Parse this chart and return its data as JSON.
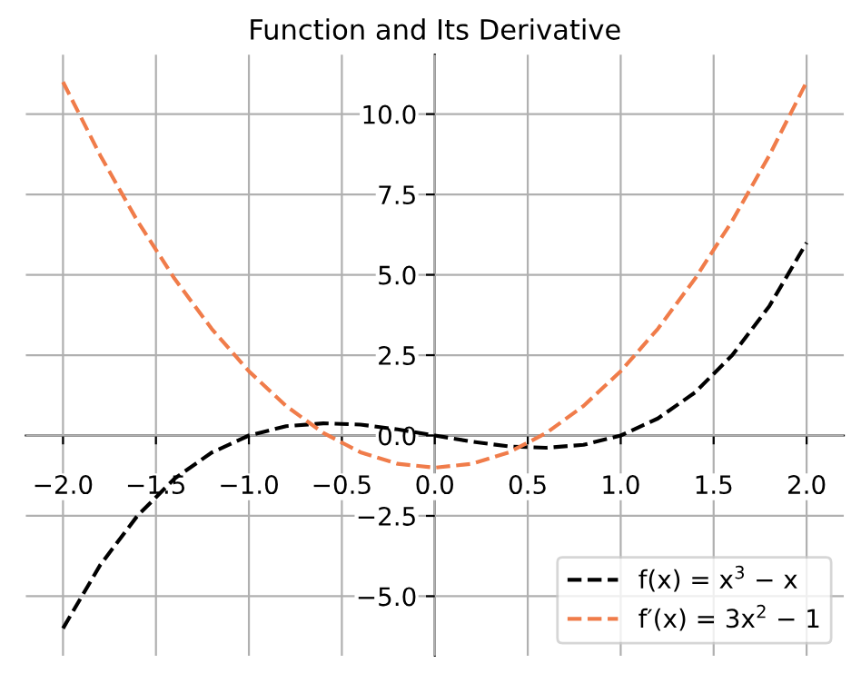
{
  "chart_data": {
    "type": "line",
    "title": "Function and Its Derivative",
    "x": [
      -2,
      -1.8,
      -1.6,
      -1.4,
      -1.2,
      -1,
      -0.8,
      -0.6,
      -0.4,
      -0.2,
      0,
      0.2,
      0.4,
      0.6,
      0.8,
      1,
      1.2,
      1.4,
      1.6,
      1.8,
      2
    ],
    "series": [
      {
        "name": "f(x) = x$^{3}$ − x",
        "color": "#000000",
        "values": [
          -6,
          -4.03,
          -2.5,
          -1.34,
          -0.53,
          0,
          0.29,
          0.38,
          0.34,
          0.19,
          0,
          -0.19,
          -0.34,
          -0.38,
          -0.29,
          0,
          0.53,
          1.34,
          2.5,
          4.03,
          6
        ]
      },
      {
        "name": "f′(x) = 3x$^{2}$ − 1",
        "color": "#f07c4a",
        "values": [
          11,
          8.72,
          6.68,
          4.88,
          3.32,
          2,
          0.92,
          0.08,
          -0.52,
          -0.88,
          -1,
          -0.88,
          -0.52,
          0.08,
          0.92,
          2,
          3.32,
          4.88,
          6.68,
          8.72,
          11
        ]
      }
    ],
    "xlim": [
      -2.2,
      2.2
    ],
    "ylim": [
      -6.85,
      11.85
    ],
    "xticks": [
      {
        "value": -2,
        "label": "−2.0"
      },
      {
        "value": -1.5,
        "label": "−1.5"
      },
      {
        "value": -1,
        "label": "−1.0"
      },
      {
        "value": -0.5,
        "label": "−0.5"
      },
      {
        "value": 0,
        "label": "0.0"
      },
      {
        "value": 0.5,
        "label": "0.5"
      },
      {
        "value": 1,
        "label": "1.0"
      },
      {
        "value": 1.5,
        "label": "1.5"
      },
      {
        "value": 2,
        "label": "2.0"
      }
    ],
    "yticks": [
      {
        "value": -5,
        "label": "−5.0"
      },
      {
        "value": -2.5,
        "label": "−2.5"
      },
      {
        "value": 0,
        "label": "0.0"
      },
      {
        "value": 2.5,
        "label": "2.5"
      },
      {
        "value": 5,
        "label": "5.0"
      },
      {
        "value": 7.5,
        "label": "7.5"
      },
      {
        "value": 10,
        "label": "10.0"
      }
    ],
    "grid": true,
    "legend": "lower right",
    "line_style": "dashed",
    "marker": "none"
  }
}
